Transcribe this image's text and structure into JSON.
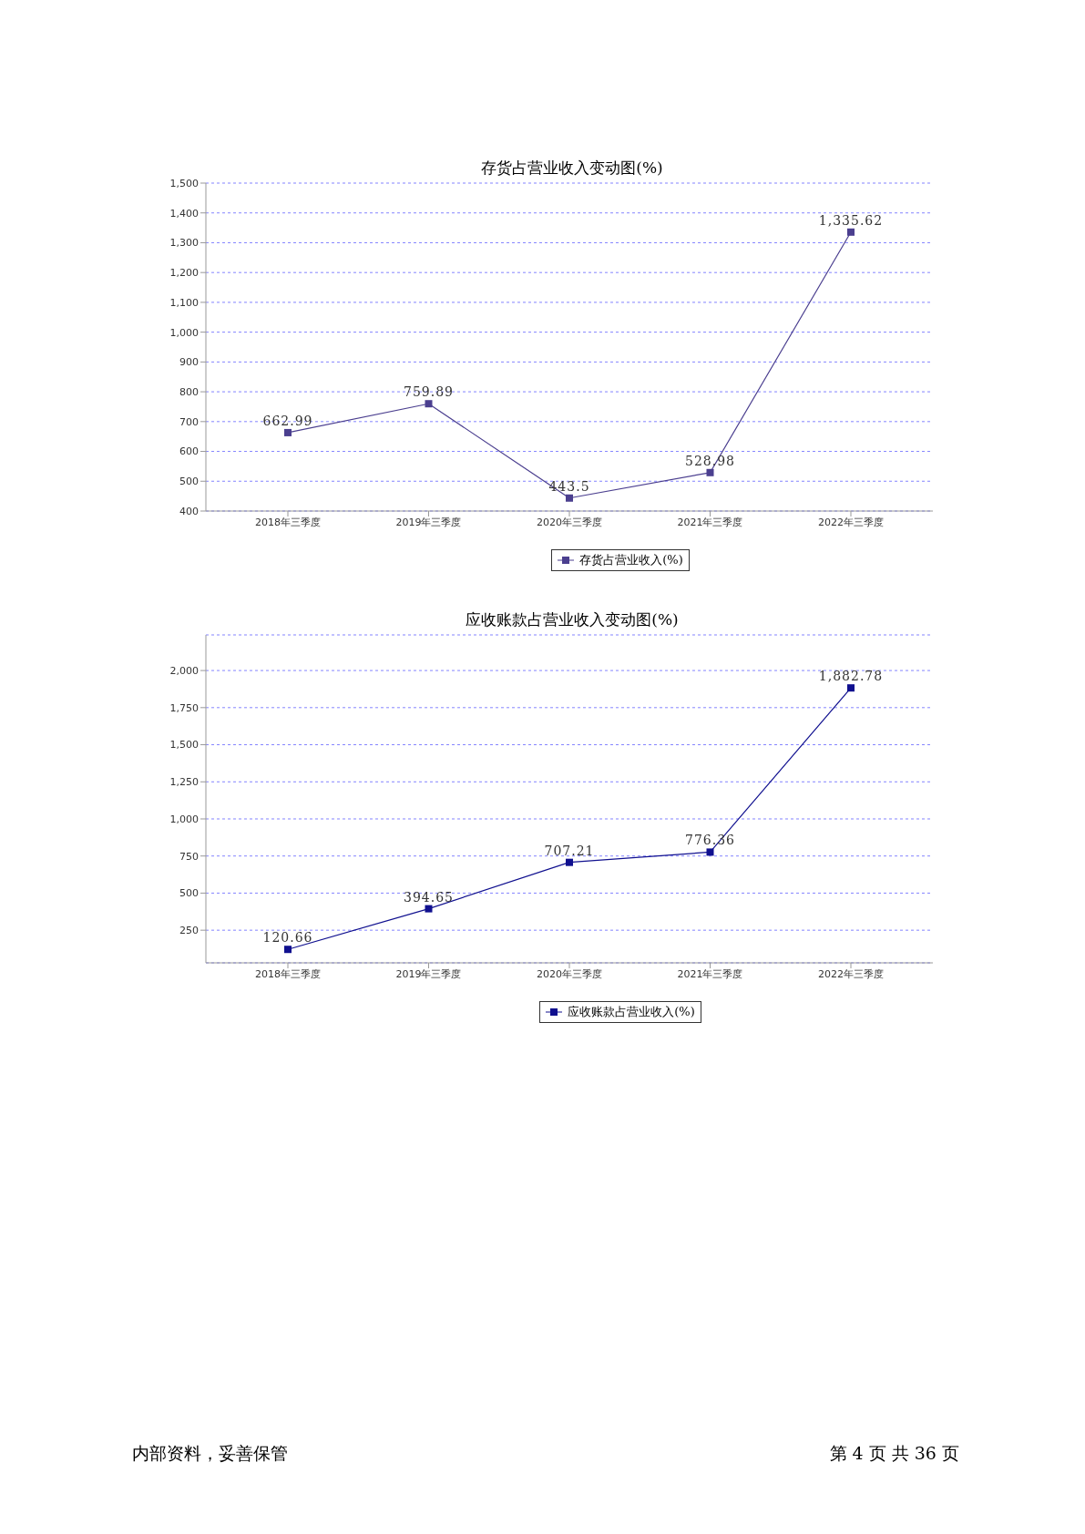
{
  "chart_data": [
    {
      "type": "line",
      "title": "存货占营业收入变动图(%)",
      "categories": [
        "2018年三季度",
        "2019年三季度",
        "2020年三季度",
        "2021年三季度",
        "2022年三季度"
      ],
      "series": [
        {
          "name": "存货占营业收入(%)",
          "color": "#4b3f8f",
          "values": [
            662.99,
            759.89,
            443.5,
            528.98,
            1335.62
          ],
          "value_labels": [
            "662.99",
            "759.89",
            "443.5",
            "528.98",
            "1,335.62"
          ]
        }
      ],
      "ylim": [
        400,
        1500
      ],
      "yticks": [
        400,
        500,
        600,
        700,
        800,
        900,
        {
          "value": 1000,
          "label": "1,000"
        },
        {
          "value": 1100,
          "label": "1,100"
        },
        {
          "value": 1200,
          "label": "1,200"
        },
        {
          "value": 1300,
          "label": "1,300"
        },
        {
          "value": 1400,
          "label": "1,400"
        },
        {
          "value": 1500,
          "label": "1,500"
        }
      ],
      "grid": "y",
      "legend": "bottom",
      "marker": "square",
      "line_style": "solid"
    },
    {
      "type": "line",
      "title": "应收账款占营业收入变动图(%)",
      "categories": [
        "2018年三季度",
        "2019年三季度",
        "2020年三季度",
        "2021年三季度",
        "2022年三季度"
      ],
      "series": [
        {
          "name": "应收账款占营业收入(%)",
          "color": "#10108f",
          "values": [
            120.66,
            394.65,
            707.21,
            776.36,
            1882.78
          ],
          "value_labels": [
            "120.66",
            "394.65",
            "707.21",
            "776.36",
            "1,882.78"
          ]
        }
      ],
      "ylim": [
        30,
        2240
      ],
      "yticks": [
        250,
        500,
        750,
        {
          "value": 1000,
          "label": "1,000"
        },
        {
          "value": 1250,
          "label": "1,250"
        },
        {
          "value": 1500,
          "label": "1,500"
        },
        {
          "value": 1750,
          "label": "1,750"
        },
        {
          "value": 2000,
          "label": "2,000"
        }
      ],
      "grid": "y",
      "legend": "bottom",
      "marker": "square",
      "line_style": "solid",
      "annotations": [
        "内部资料，妥善保管",
        "第 4 页 共 36 页"
      ]
    }
  ]
}
